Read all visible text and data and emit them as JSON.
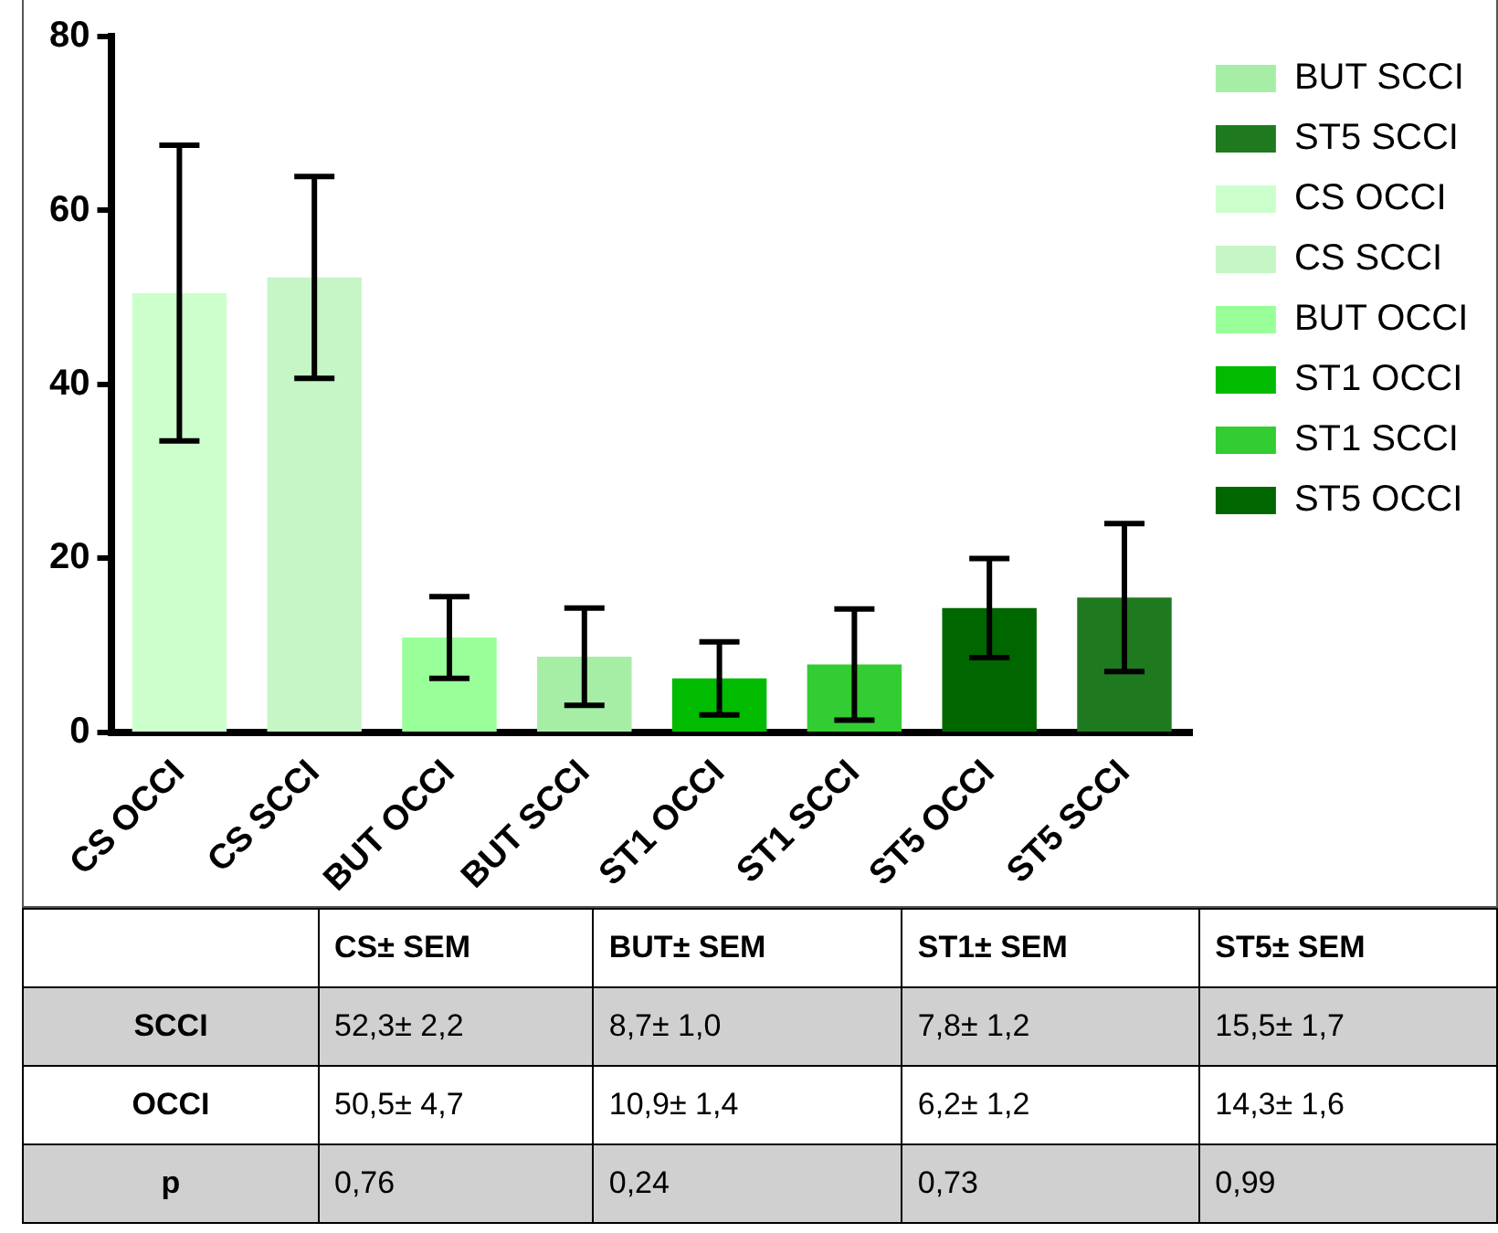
{
  "chart_data": [
    {
      "type": "bar",
      "categories": [
        "CS OCCI",
        "CS SCCI",
        "BUT OCCI",
        "BUT SCCI",
        "ST1 OCCI",
        "ST1 SCCI",
        "ST5 OCCI",
        "ST5 SCCI"
      ],
      "series": [
        {
          "name": "BUT SCCI",
          "color": "#a6eea6",
          "values": [
            null,
            null,
            null,
            8.7,
            null,
            null,
            null,
            null
          ],
          "errors": [
            null,
            null,
            null,
            5.6,
            null,
            null,
            null,
            null
          ]
        },
        {
          "name": "ST5 SCCI",
          "color": "#1f7a1f",
          "values": [
            null,
            null,
            null,
            null,
            null,
            null,
            null,
            15.5
          ],
          "errors": [
            null,
            null,
            null,
            null,
            null,
            null,
            null,
            8.5
          ]
        },
        {
          "name": "CS OCCI",
          "color": "#ccffcc",
          "values": [
            50.5,
            null,
            null,
            null,
            null,
            null,
            null,
            null
          ],
          "errors": [
            17,
            null,
            null,
            null,
            null,
            null,
            null,
            null
          ]
        },
        {
          "name": "CS SCCI",
          "color": "#c6f5c6",
          "values": [
            null,
            52.3,
            null,
            null,
            null,
            null,
            null,
            null
          ],
          "errors": [
            null,
            11.6,
            null,
            null,
            null,
            null,
            null,
            null
          ]
        },
        {
          "name": "BUT OCCI",
          "color": "#99ff99",
          "values": [
            null,
            null,
            10.9,
            null,
            null,
            null,
            null,
            null
          ],
          "errors": [
            null,
            null,
            4.7,
            null,
            null,
            null,
            null,
            null
          ]
        },
        {
          "name": "ST1 OCCI",
          "color": "#00bb00",
          "values": [
            null,
            null,
            null,
            null,
            6.2,
            null,
            null,
            null
          ],
          "errors": [
            null,
            null,
            null,
            null,
            4.2,
            null,
            null,
            null
          ]
        },
        {
          "name": "ST1 SCCI",
          "color": "#33cc33",
          "values": [
            null,
            null,
            null,
            null,
            null,
            7.8,
            null,
            null
          ],
          "errors": [
            null,
            null,
            null,
            null,
            null,
            6.4,
            null,
            null
          ]
        },
        {
          "name": "ST5 OCCI",
          "color": "#006600",
          "values": [
            null,
            null,
            null,
            null,
            null,
            null,
            14.3,
            null
          ],
          "errors": [
            null,
            null,
            null,
            null,
            null,
            null,
            5.7,
            null
          ]
        }
      ],
      "ylim": [
        0,
        80
      ],
      "yticks": [
        0,
        20,
        40,
        60,
        80
      ],
      "grid": false,
      "legend": "top right"
    },
    {
      "type": "other",
      "categories": [
        null,
        "CS± SEM",
        "BUT± SEM",
        "ST1± SEM",
        "ST5± SEM"
      ],
      "y_categories": [
        "SCCI",
        "OCCI",
        "p"
      ],
      "cell_labels": [
        [
          "52,3± 2,2",
          "8,7± 1,0",
          "7,8± 1,2",
          "15,5± 1,7"
        ],
        [
          "50,5± 4,7",
          "10,9± 1,4",
          "6,2± 1,2",
          "14,3± 1,6"
        ],
        [
          "0,76",
          "0,24",
          "0,73",
          "0,99"
        ]
      ]
    }
  ]
}
